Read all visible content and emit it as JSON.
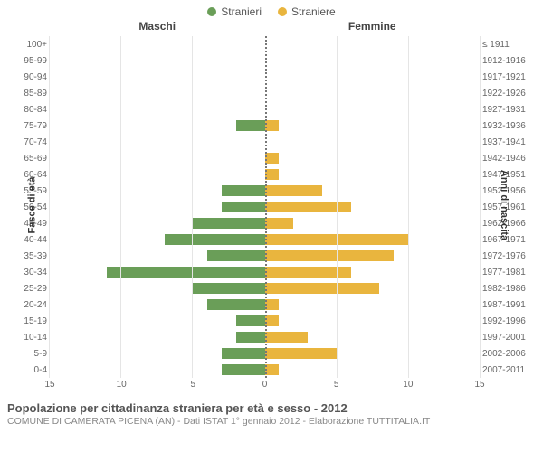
{
  "legend": {
    "male": {
      "label": "Stranieri",
      "color": "#6a9e58"
    },
    "female": {
      "label": "Straniere",
      "color": "#e9b53e"
    }
  },
  "headers": {
    "left": "Maschi",
    "right": "Femmine"
  },
  "axis_titles": {
    "left": "Fasce di età",
    "right": "Anni di nascita"
  },
  "chart": {
    "type": "population-pyramid",
    "xmax": 15,
    "xticks": [
      15,
      10,
      5,
      0,
      5,
      10,
      15
    ],
    "grid_color": "#e5e5e5",
    "bg_color": "#ffffff",
    "rows": [
      {
        "age": "100+",
        "birth": "≤ 1911",
        "m": 0,
        "f": 0
      },
      {
        "age": "95-99",
        "birth": "1912-1916",
        "m": 0,
        "f": 0
      },
      {
        "age": "90-94",
        "birth": "1917-1921",
        "m": 0,
        "f": 0
      },
      {
        "age": "85-89",
        "birth": "1922-1926",
        "m": 0,
        "f": 0
      },
      {
        "age": "80-84",
        "birth": "1927-1931",
        "m": 0,
        "f": 0
      },
      {
        "age": "75-79",
        "birth": "1932-1936",
        "m": 2,
        "f": 1
      },
      {
        "age": "70-74",
        "birth": "1937-1941",
        "m": 0,
        "f": 0
      },
      {
        "age": "65-69",
        "birth": "1942-1946",
        "m": 0,
        "f": 1
      },
      {
        "age": "60-64",
        "birth": "1947-1951",
        "m": 0,
        "f": 1
      },
      {
        "age": "55-59",
        "birth": "1952-1956",
        "m": 3,
        "f": 4
      },
      {
        "age": "50-54",
        "birth": "1957-1961",
        "m": 3,
        "f": 6
      },
      {
        "age": "45-49",
        "birth": "1962-1966",
        "m": 5,
        "f": 2
      },
      {
        "age": "40-44",
        "birth": "1967-1971",
        "m": 7,
        "f": 10
      },
      {
        "age": "35-39",
        "birth": "1972-1976",
        "m": 4,
        "f": 9
      },
      {
        "age": "30-34",
        "birth": "1977-1981",
        "m": 11,
        "f": 6
      },
      {
        "age": "25-29",
        "birth": "1982-1986",
        "m": 5,
        "f": 8
      },
      {
        "age": "20-24",
        "birth": "1987-1991",
        "m": 4,
        "f": 1
      },
      {
        "age": "15-19",
        "birth": "1992-1996",
        "m": 2,
        "f": 1
      },
      {
        "age": "10-14",
        "birth": "1997-2001",
        "m": 2,
        "f": 3
      },
      {
        "age": "5-9",
        "birth": "2002-2006",
        "m": 3,
        "f": 5
      },
      {
        "age": "0-4",
        "birth": "2007-2011",
        "m": 3,
        "f": 1
      }
    ]
  },
  "footer": {
    "title": "Popolazione per cittadinanza straniera per età e sesso - 2012",
    "subtitle": "COMUNE DI CAMERATA PICENA (AN) - Dati ISTAT 1° gennaio 2012 - Elaborazione TUTTITALIA.IT"
  }
}
